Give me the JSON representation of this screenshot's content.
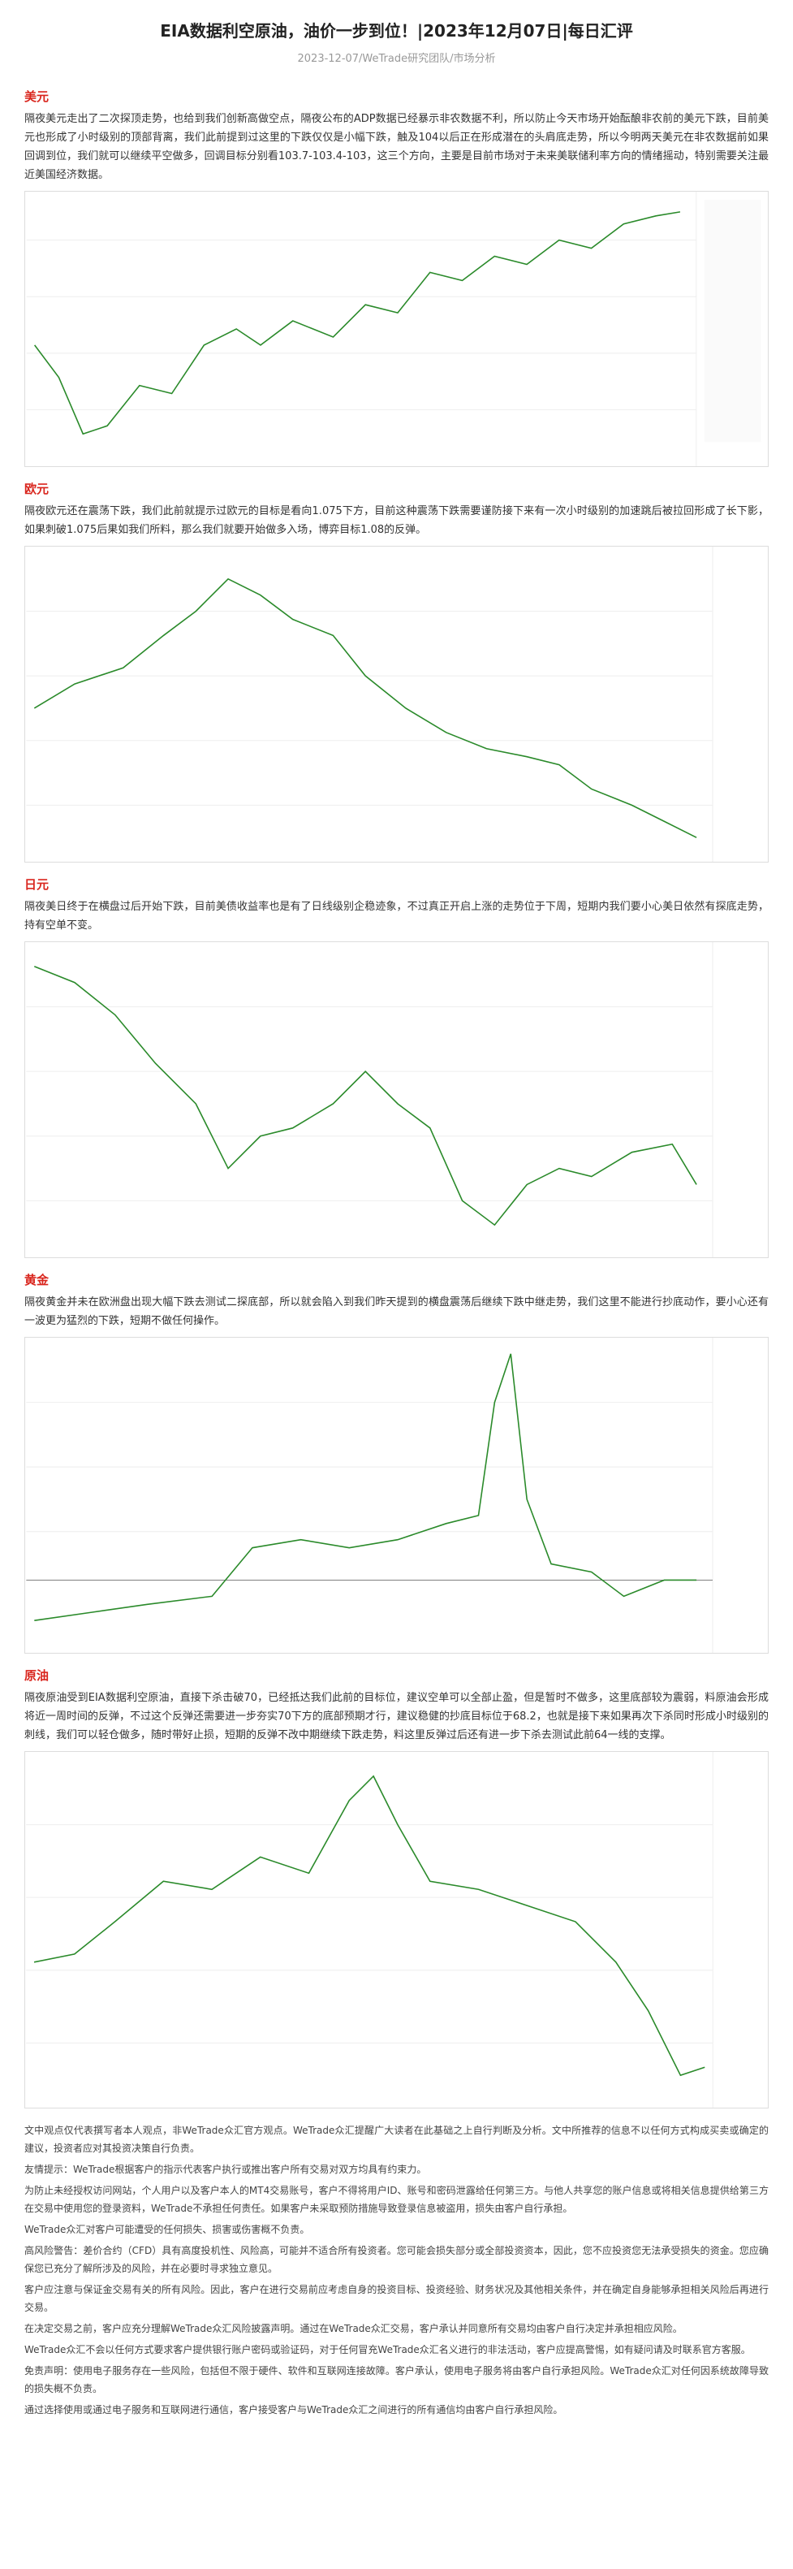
{
  "header": {
    "title": "EIA数据利空原油，油价一步到位！|2023年12月07日|每日汇评",
    "subtitle": "2023-12-07/WeTrade研究团队/市场分析"
  },
  "sections": [
    {
      "heading": "美元",
      "text": "隔夜美元走出了二次探顶走势，也给到我们创新高做空点，隔夜公布的ADP数据已经暴示非农数据不利，所以防止今天市场开始酝酿非农前的美元下跌，目前美元也形成了小时级别的顶部背离，我们此前提到过这里的下跌仅仅是小幅下跌，触及104以后正在形成潜在的头肩底走势，所以今明两天美元在非农数据前如果回调到位，我们就可以继续平空做多，回调目标分别看103.7-103.4-103，这三个方向，主要是目前市场对于未来美联储利率方向的情绪摇动，特别需要关注最近美国经济数据。"
    },
    {
      "heading": "欧元",
      "text": "隔夜欧元还在震荡下跌，我们此前就提示过欧元的目标是看向1.075下方，目前这种震荡下跌需要谨防接下来有一次小时级别的加速跳后被拉回形成了长下影，如果刺破1.075后果如我们所料，那么我们就要开始做多入场，博弈目标1.08的反弹。"
    },
    {
      "heading": "日元",
      "text": "隔夜美日终于在横盘过后开始下跌，目前美债收益率也是有了日线级别企稳迹象，不过真正开启上涨的走势位于下周，短期内我们要小心美日依然有探底走势，持有空单不变。"
    },
    {
      "heading": "黄金",
      "text": "隔夜黄金并未在欧洲盘出现大幅下跌去测试二探底部，所以就会陷入到我们昨天提到的横盘震荡后继续下跌中继走势，我们这里不能进行抄底动作，要小心还有一波更为猛烈的下跌，短期不做任何操作。"
    },
    {
      "heading": "原油",
      "text": "隔夜原油受到EIA数据利空原油，直接下杀击破70，已经抵达我们此前的目标位，建议空单可以全部止盈，但是暂时不做多，这里底部较为震弱，料原油会形成将近一周时间的反弹，不过这个反弹还需要进一步夯实70下方的底部预期才行，建议稳健的抄底目标位于68.2，也就是接下来如果再次下杀同时形成小时级别的刺线，我们可以轻仓做多，随时带好止损，短期的反弹不改中期继续下跌走势，料这里反弹过后还有进一步下杀去测试此前64一线的支撑。"
    }
  ],
  "disclaimer": [
    "文中观点仅代表撰写者本人观点，非WeTrade众汇官方观点。WeTrade众汇提醒广大读者在此基础之上自行判断及分析。文中所推荐的信息不以任何方式构成买卖或确定的建议，投资者应对其投资决策自行负责。",
    "友情提示：WeTrade根据客户的指示代表客户执行或推出客户所有交易对双方均具有约束力。",
    "为防止未经授权访问网站，个人用户以及客户本人的MT4交易账号，客户不得将用户ID、账号和密码泄露给任何第三方。与他人共享您的账户信息或将相关信息提供给第三方在交易中使用您的登录资料，WeTrade不承担任何责任。如果客户未采取预防措施导致登录信息被盗用，损失由客户自行承担。",
    "WeTrade众汇对客户可能遭受的任何损失、损害或伤害概不负责。",
    "高风险警告：差价合约（CFD）具有高度投机性、风险高，可能并不适合所有投资者。您可能会损失部分或全部投资资本，因此，您不应投资您无法承受损失的资金。您应确保您已充分了解所涉及的风险，并在必要时寻求独立意见。",
    "客户应注意与保证金交易有关的所有风险。因此，客户在进行交易前应考虑自身的投资目标、投资经验、财务状况及其他相关条件，并在确定自身能够承担相关风险后再进行交易。",
    "在决定交易之前，客户应充分理解WeTrade众汇风险披露声明。通过在WeTrade众汇交易，客户承认并同意所有交易均由客户自行决定并承担相应风险。",
    "WeTrade众汇不会以任何方式要求客户提供银行账户密码或验证码，对于任何冒充WeTrade众汇名义进行的非法活动，客户应提高警惕，如有疑问请及时联系官方客服。",
    "免责声明：使用电子服务存在一些风险，包括但不限于硬件、软件和互联网连接故障。客户承认，使用电子服务将由客户自行承担风险。WeTrade众汇对任何因系统故障导致的损失概不负责。",
    "通过选择使用或通过电子服务和互联网进行通信，客户接受客户与WeTrade众汇之间进行的所有通信均由客户自行承担风险。"
  ]
}
